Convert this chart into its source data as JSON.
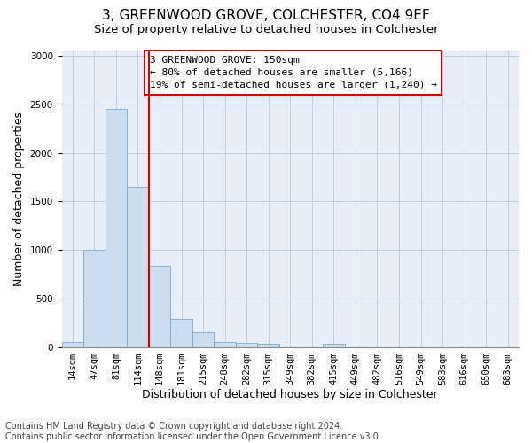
{
  "title": "3, GREENWOOD GROVE, COLCHESTER, CO4 9EF",
  "subtitle": "Size of property relative to detached houses in Colchester",
  "xlabel": "Distribution of detached houses by size in Colchester",
  "ylabel": "Number of detached properties",
  "categories": [
    "14sqm",
    "47sqm",
    "81sqm",
    "114sqm",
    "148sqm",
    "181sqm",
    "215sqm",
    "248sqm",
    "282sqm",
    "315sqm",
    "349sqm",
    "382sqm",
    "415sqm",
    "449sqm",
    "482sqm",
    "516sqm",
    "549sqm",
    "583sqm",
    "616sqm",
    "650sqm",
    "683sqm"
  ],
  "values": [
    55,
    1000,
    2450,
    1650,
    840,
    290,
    150,
    55,
    40,
    30,
    0,
    0,
    35,
    0,
    0,
    0,
    0,
    0,
    0,
    0,
    0
  ],
  "bar_color": "#ccddf0",
  "bar_edge_color": "#7aaacc",
  "property_line_color": "#cc0000",
  "annotation_text": "3 GREENWOOD GROVE: 150sqm\n← 80% of detached houses are smaller (5,166)\n19% of semi-detached houses are larger (1,240) →",
  "annotation_box_color": "#ffffff",
  "annotation_box_edge_color": "#cc0000",
  "ylim": [
    0,
    3050
  ],
  "yticks": [
    0,
    500,
    1000,
    1500,
    2000,
    2500,
    3000
  ],
  "footer_line1": "Contains HM Land Registry data © Crown copyright and database right 2024.",
  "footer_line2": "Contains public sector information licensed under the Open Government Licence v3.0.",
  "bg_color": "#ffffff",
  "plot_bg_color": "#e8eef8",
  "grid_color": "#c0cce0",
  "title_fontsize": 11,
  "subtitle_fontsize": 9.5,
  "axis_label_fontsize": 9,
  "tick_fontsize": 7.5,
  "annotation_fontsize": 8,
  "footer_fontsize": 7,
  "property_line_index": 3.5
}
